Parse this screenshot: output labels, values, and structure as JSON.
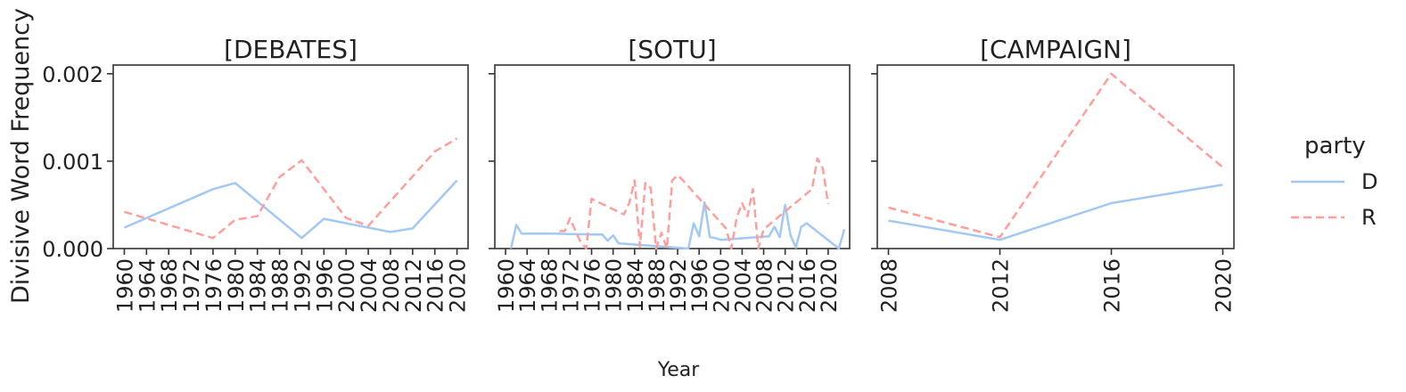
{
  "chart_data": {
    "type": "line",
    "ylabel": "Divisive Word Frequency",
    "xlabel": "Year",
    "ylim": [
      0,
      0.0021
    ],
    "yticks": [
      "0.000",
      "0.001",
      "0.002"
    ],
    "ytick_values": [
      0,
      0.001,
      0.002
    ],
    "grid": false,
    "legend": {
      "title": "party",
      "placement": "right",
      "entries": [
        {
          "label": "D",
          "color": "#a1c9f4",
          "dash": "solid"
        },
        {
          "label": "R",
          "color": "#ff9f9b",
          "dash": "dashed"
        }
      ]
    },
    "panels": [
      {
        "title": "[DEBATES]",
        "xlim": [
          1958,
          2022
        ],
        "xticks": [
          "1960",
          "1964",
          "1968",
          "1972",
          "1976",
          "1980",
          "1984",
          "1988",
          "1992",
          "1996",
          "2000",
          "2004",
          "2008",
          "2012",
          "2016",
          "2020"
        ],
        "series": [
          {
            "name": "D",
            "x": [
              1960,
              1976,
              1980,
              1992,
              1996,
              2008,
              2012,
              2020
            ],
            "y": [
              0.00024,
              0.00068,
              0.00075,
              0.00012,
              0.00034,
              0.00019,
              0.00023,
              0.00078
            ]
          },
          {
            "name": "R",
            "x": [
              1960,
              1976,
              1980,
              1984,
              1988,
              1992,
              2000,
              2004,
              2016,
              2020
            ],
            "y": [
              0.00042,
              0.00012,
              0.00033,
              0.00037,
              0.00082,
              0.00101,
              0.00035,
              0.00026,
              0.00111,
              0.00126
            ]
          }
        ]
      },
      {
        "title": "[SOTU]",
        "xlim": [
          1958,
          2024
        ],
        "xticks": [
          "1960",
          "1964",
          "1968",
          "1972",
          "1976",
          "1980",
          "1984",
          "1988",
          "1992",
          "1996",
          "2000",
          "2004",
          "2008",
          "2012",
          "2016",
          "2020"
        ],
        "series": [
          {
            "name": "D",
            "x": [
              1961,
              1962,
              1963,
              1964,
              1966,
              1967,
              1968,
              1969,
              1977,
              1978,
              1979,
              1980,
              1981,
              1994,
              1995,
              1996,
              1997,
              1998,
              1999,
              2000,
              2009,
              2010,
              2011,
              2012,
              2013,
              2014,
              2015,
              2016,
              2022,
              2023
            ],
            "y": [
              0.0,
              0.00027,
              0.00017,
              0.00017,
              0.00017,
              0.00017,
              0.00017,
              0.00017,
              0.00016,
              0.00016,
              9e-05,
              0.00015,
              6e-05,
              0.0,
              0.00029,
              0.00014,
              0.00053,
              0.00013,
              0.00012,
              0.0001,
              0.00014,
              0.00025,
              0.00013,
              0.0005,
              0.00015,
              1e-05,
              0.00025,
              0.00029,
              0.0,
              0.00022
            ]
          },
          {
            "name": "R",
            "x": [
              1970,
              1971,
              1972,
              1973,
              1974,
              1975,
              1976,
              1982,
              1983,
              1984,
              1985,
              1986,
              1987,
              1988,
              1989,
              1990,
              1991,
              1992,
              1993,
              2001,
              2002,
              2003,
              2004,
              2005,
              2006,
              2007,
              2008,
              2017,
              2018,
              2019,
              2020
            ],
            "y": [
              0.0002,
              0.0002,
              0.00035,
              0.0002,
              7e-05,
              0.0,
              0.00057,
              0.00039,
              0.00052,
              0.00078,
              2e-05,
              0.00075,
              0.00069,
              0.0,
              0.00018,
              0.0,
              0.00078,
              0.00084,
              0.00078,
              0.00023,
              0.0,
              0.00036,
              0.00052,
              0.00037,
              0.00068,
              0.0,
              0.00022,
              0.00068,
              0.00103,
              0.00092,
              0.00051
            ]
          }
        ]
      },
      {
        "title": "[CAMPAIGN]",
        "xlim": [
          2007.6,
          2020.4
        ],
        "xticks": [
          "2008",
          "2012",
          "2016",
          "2020"
        ],
        "series": [
          {
            "name": "D",
            "x": [
              2008,
              2012,
              2016,
              2020
            ],
            "y": [
              0.00032,
              0.0001,
              0.00052,
              0.00073
            ]
          },
          {
            "name": "R",
            "x": [
              2008,
              2012,
              2016,
              2020
            ],
            "y": [
              0.00047,
              0.00013,
              0.002,
              0.00093
            ]
          }
        ]
      }
    ]
  }
}
